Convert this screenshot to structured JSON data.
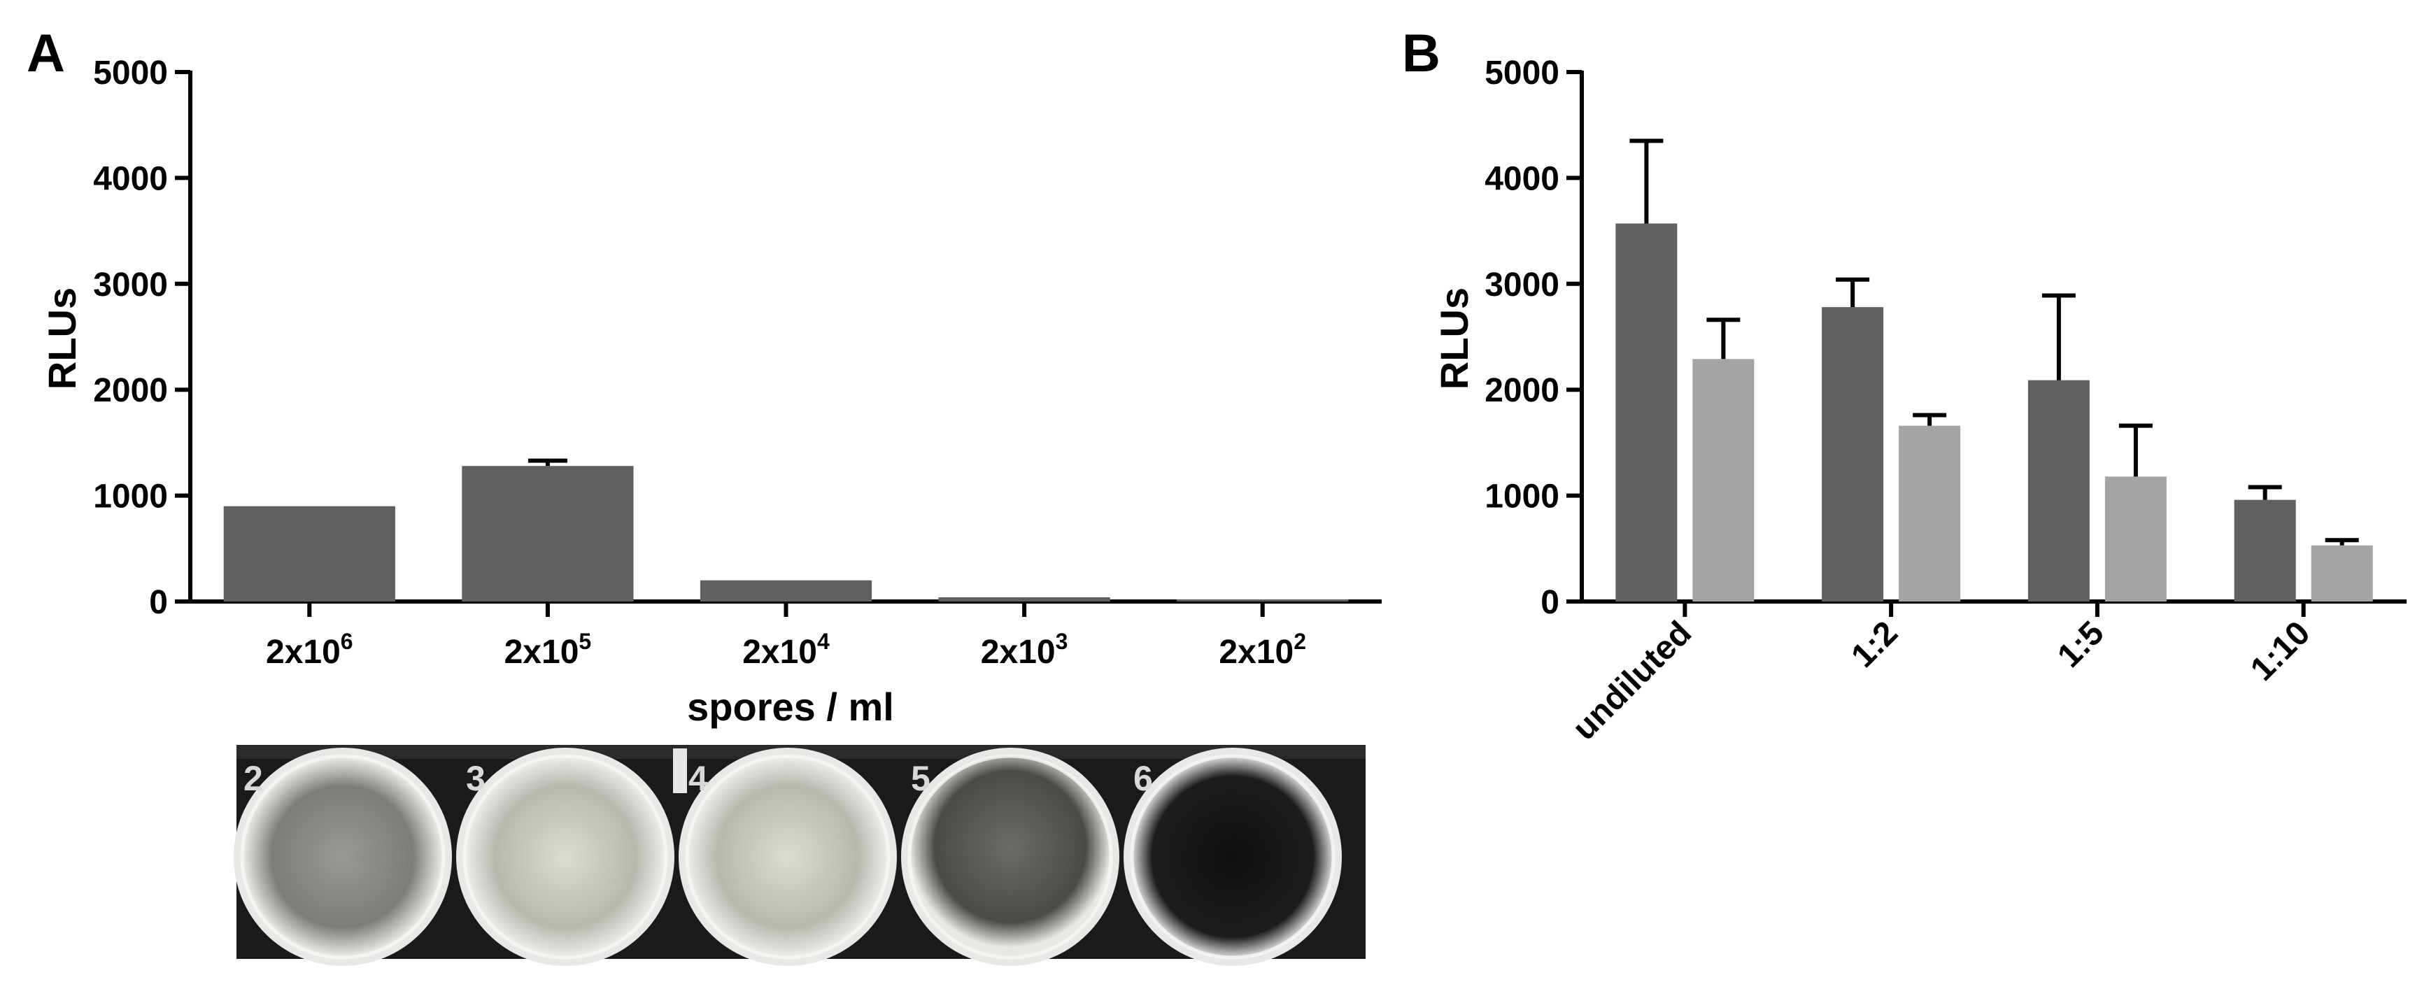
{
  "chart_data": [
    {
      "panel": "A",
      "type": "bar",
      "categories_base": [
        "2x10",
        "2x10",
        "2x10",
        "2x10",
        "2x10"
      ],
      "categories_exp": [
        "6",
        "5",
        "4",
        "3",
        "2"
      ],
      "values": [
        900,
        1280,
        200,
        40,
        20
      ],
      "errors": [
        0,
        50,
        0,
        0,
        0
      ],
      "xlabel": "spores / ml",
      "ylabel": "RLUs",
      "ylim": [
        0,
        5000
      ],
      "yticks": [
        0,
        1000,
        2000,
        3000,
        4000,
        5000
      ],
      "grid": false,
      "color": "#606060"
    },
    {
      "panel": "B",
      "type": "bar",
      "categories": [
        "undiluted",
        "1:2",
        "1:5",
        "1:10"
      ],
      "series": [
        {
          "values": [
            3570,
            2780,
            2090,
            960
          ],
          "errors": [
            780,
            260,
            800,
            120
          ],
          "color": "#606060"
        },
        {
          "values": [
            2290,
            1660,
            1180,
            530
          ],
          "errors": [
            370,
            100,
            480,
            50
          ],
          "color": "#a4a4a6"
        }
      ],
      "ylabel": "RLUs",
      "ylim": [
        0,
        5000
      ],
      "yticks": [
        0,
        1000,
        2000,
        3000,
        4000,
        5000
      ],
      "grid": false
    }
  ],
  "photo": {
    "well_numbers": [
      "2",
      "3",
      "4",
      "5",
      "6"
    ]
  }
}
